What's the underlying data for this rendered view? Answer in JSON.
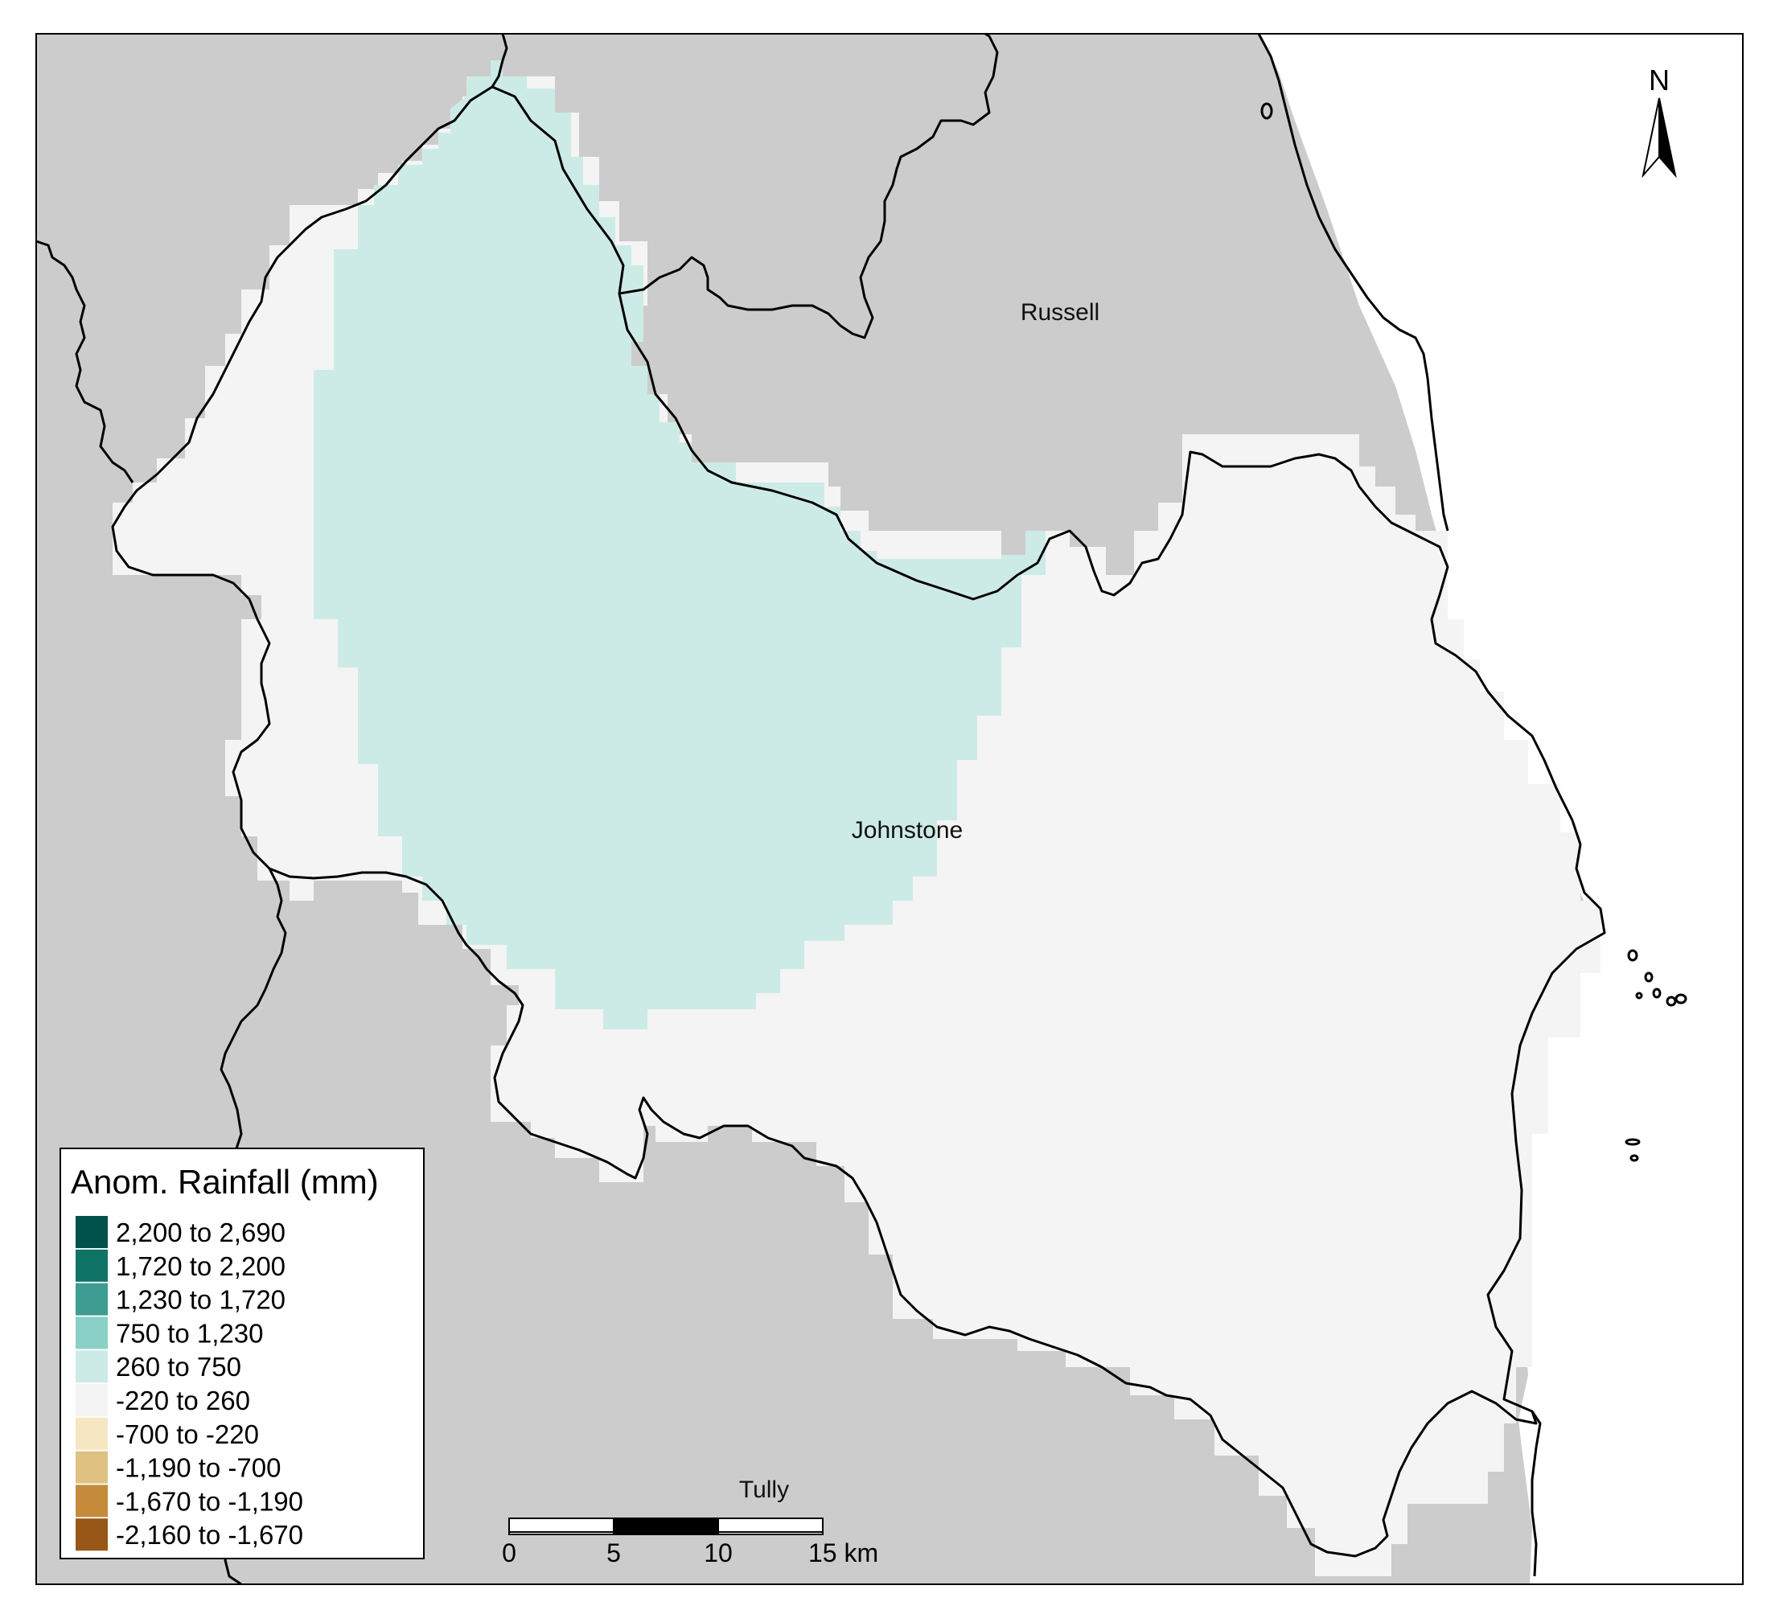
{
  "map": {
    "place_labels": [
      {
        "id": "russell",
        "text": "Russell"
      },
      {
        "id": "johnstone",
        "text": "Johnstone"
      },
      {
        "id": "tully",
        "text": "Tully"
      }
    ],
    "colors": {
      "background_land": "#cccccc",
      "sea": "#ffffff",
      "class_260_750": "#cdebe6",
      "class_neg220_260": "#f4f4f4",
      "boundary": "#000000"
    }
  },
  "legend": {
    "title": "Anom. Rainfall (mm)",
    "items": [
      {
        "label": "2,200 to 2,690",
        "color": "#01524a"
      },
      {
        "label": "1,720 to 2,200",
        "color": "#0f7366"
      },
      {
        "label": "1,230 to 1,720",
        "color": "#3d9d93"
      },
      {
        "label": "750 to 1,230",
        "color": "#8bd0c6"
      },
      {
        "label": "260 to 750",
        "color": "#cdebe6"
      },
      {
        "label": "-220 to 260",
        "color": "#f4f4f4"
      },
      {
        "label": "-700 to -220",
        "color": "#f6e6c2"
      },
      {
        "label": "-1,190 to -700",
        "color": "#dfc281"
      },
      {
        "label": "-1,670 to -1,190",
        "color": "#c58b3a"
      },
      {
        "label": "-2,160 to -1,670",
        "color": "#975717"
      }
    ]
  },
  "scale_bar": {
    "ticks": [
      "0",
      "5",
      "10",
      "15 km"
    ]
  },
  "north_arrow": {
    "label": "N"
  }
}
